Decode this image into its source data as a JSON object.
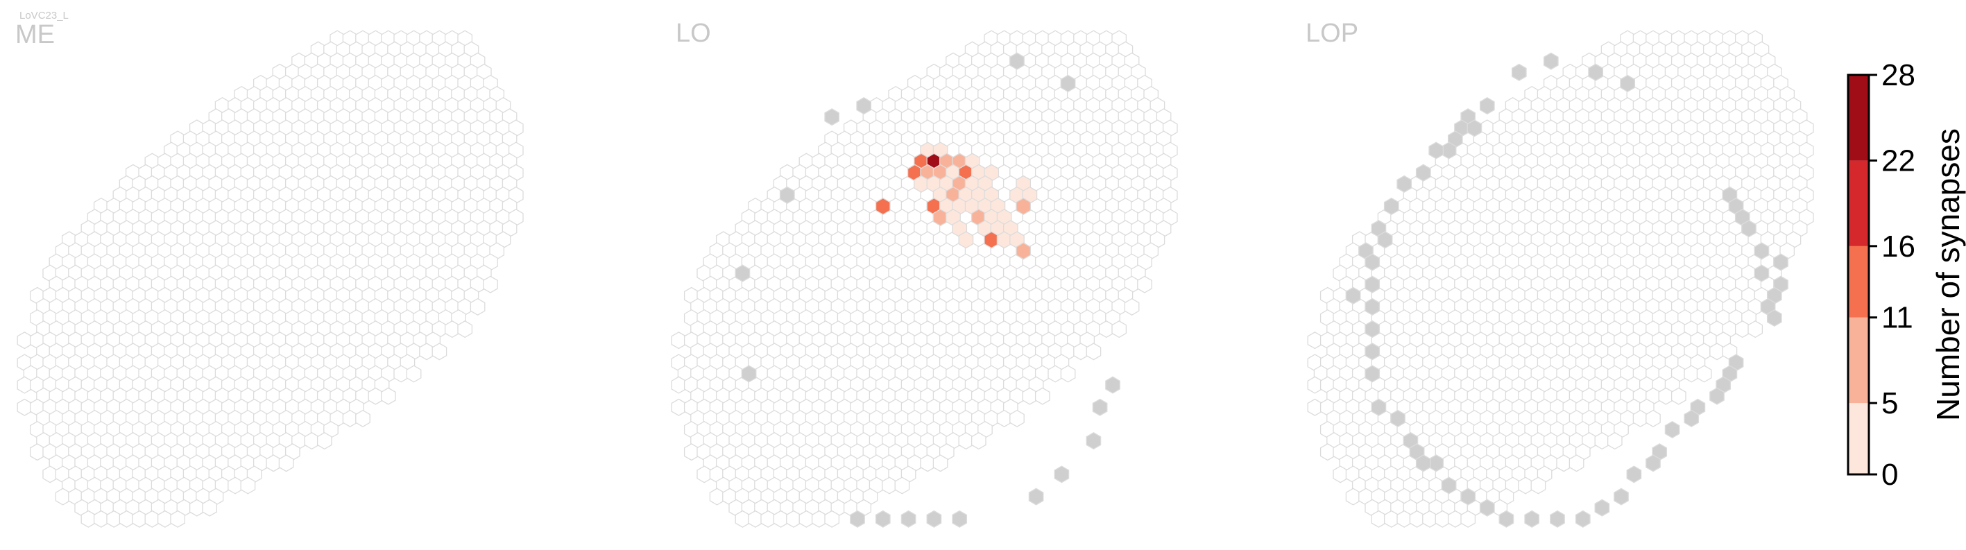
{
  "figure_title": "LoVC23_L",
  "chart_data": {
    "type": "heatmap",
    "colorbar": {
      "label": "Number of synapses",
      "ticks": [
        0,
        5,
        11,
        16,
        22,
        28
      ],
      "bins": [
        {
          "from": 0,
          "to": 5,
          "color": "#fde7dd"
        },
        {
          "from": 5,
          "to": 11,
          "color": "#f9b29a"
        },
        {
          "from": 11,
          "to": 16,
          "color": "#f4704f"
        },
        {
          "from": 16,
          "to": 22,
          "color": "#d5282c"
        },
        {
          "from": 22,
          "to": 28,
          "color": "#a10d16"
        }
      ]
    },
    "colors": {
      "cell_outline": "#dcdcdc",
      "boundary_cell": "#cfcfcf",
      "axis": "#000000"
    },
    "panels": [
      {
        "name": "ME",
        "active_cells": [],
        "boundary_cells": []
      },
      {
        "name": "LO",
        "active_cells": [
          {
            "q": 0,
            "r": 10,
            "v": 2
          },
          {
            "q": 1,
            "r": 10,
            "v": 1
          },
          {
            "q": 0,
            "r": 11,
            "v": 14
          },
          {
            "q": 1,
            "r": 11,
            "v": 28
          },
          {
            "q": 2,
            "r": 11,
            "v": 10
          },
          {
            "q": 3,
            "r": 11,
            "v": 8
          },
          {
            "q": 4,
            "r": 11,
            "v": 3
          },
          {
            "q": -1,
            "r": 12,
            "v": 12
          },
          {
            "q": 0,
            "r": 12,
            "v": 8
          },
          {
            "q": 1,
            "r": 12,
            "v": 9
          },
          {
            "q": 2,
            "r": 12,
            "v": 4
          },
          {
            "q": 3,
            "r": 12,
            "v": 12
          },
          {
            "q": 4,
            "r": 12,
            "v": 2
          },
          {
            "q": 5,
            "r": 12,
            "v": 1
          },
          {
            "q": 0,
            "r": 13,
            "v": 4
          },
          {
            "q": 1,
            "r": 13,
            "v": 3
          },
          {
            "q": 2,
            "r": 13,
            "v": 2
          },
          {
            "q": 3,
            "r": 13,
            "v": 9
          },
          {
            "q": 4,
            "r": 13,
            "v": 3
          },
          {
            "q": 5,
            "r": 13,
            "v": 2
          },
          {
            "q": 8,
            "r": 13,
            "v": 2
          },
          {
            "q": 1,
            "r": 14,
            "v": 2
          },
          {
            "q": 2,
            "r": 14,
            "v": 8
          },
          {
            "q": 3,
            "r": 14,
            "v": 1
          },
          {
            "q": 4,
            "r": 14,
            "v": 2
          },
          {
            "q": 5,
            "r": 14,
            "v": 3
          },
          {
            "q": 7,
            "r": 14,
            "v": 2
          },
          {
            "q": 8,
            "r": 14,
            "v": 3
          },
          {
            "q": -3,
            "r": 15,
            "v": 12
          },
          {
            "q": 1,
            "r": 15,
            "v": 16
          },
          {
            "q": 2,
            "r": 15,
            "v": 2
          },
          {
            "q": 3,
            "r": 15,
            "v": 3
          },
          {
            "q": 4,
            "r": 15,
            "v": 2
          },
          {
            "q": 5,
            "r": 15,
            "v": 1
          },
          {
            "q": 6,
            "r": 15,
            "v": 2
          },
          {
            "q": 8,
            "r": 15,
            "v": 10
          },
          {
            "q": 1,
            "r": 16,
            "v": 8
          },
          {
            "q": 2,
            "r": 16,
            "v": 2
          },
          {
            "q": 4,
            "r": 16,
            "v": 8
          },
          {
            "q": 5,
            "r": 16,
            "v": 2
          },
          {
            "q": 6,
            "r": 16,
            "v": 3
          },
          {
            "q": 3,
            "r": 17,
            "v": 1
          },
          {
            "q": 5,
            "r": 17,
            "v": 2
          },
          {
            "q": 6,
            "r": 17,
            "v": 3
          },
          {
            "q": 7,
            "r": 17,
            "v": 2
          },
          {
            "q": 3,
            "r": 18,
            "v": 3
          },
          {
            "q": 5,
            "r": 18,
            "v": 13
          },
          {
            "q": 6,
            "r": 18,
            "v": 2
          },
          {
            "q": 7,
            "r": 18,
            "v": 2
          },
          {
            "q": 8,
            "r": 19,
            "v": 10
          }
        ],
        "boundary_cells": [
          {
            "q": 7,
            "r": 2
          },
          {
            "q": 11,
            "r": 4
          },
          {
            "q": -5,
            "r": 6
          },
          {
            "q": -7,
            "r": 7
          },
          {
            "q": -11,
            "r": 14
          },
          {
            "q": -14,
            "r": 21
          },
          {
            "q": -14,
            "r": 30
          },
          {
            "q": 15,
            "r": 31
          },
          {
            "q": 14,
            "r": 33
          },
          {
            "q": 13,
            "r": 36
          },
          {
            "q": 11,
            "r": 39
          },
          {
            "q": 9,
            "r": 41
          },
          {
            "q": -5,
            "r": 43
          },
          {
            "q": -3,
            "r": 43
          },
          {
            "q": -1,
            "r": 43
          },
          {
            "q": 1,
            "r": 43
          },
          {
            "q": 3,
            "r": 43
          }
        ]
      },
      {
        "name": "LOP",
        "active_cells": [],
        "boundary_cells": [
          {
            "q": -3,
            "r": 3
          },
          {
            "q": -1,
            "r": 2
          },
          {
            "q": 3,
            "r": 3
          },
          {
            "q": 5,
            "r": 4
          },
          {
            "q": -6,
            "r": 6
          },
          {
            "q": -7,
            "r": 7
          },
          {
            "q": -8,
            "r": 8
          },
          {
            "q": -7,
            "r": 8
          },
          {
            "q": -8,
            "r": 9
          },
          {
            "q": -9,
            "r": 10
          },
          {
            "q": -10,
            "r": 10
          },
          {
            "q": -11,
            "r": 12
          },
          {
            "q": -12,
            "r": 13
          },
          {
            "q": -13,
            "r": 15
          },
          {
            "q": -14,
            "r": 17
          },
          {
            "q": -14,
            "r": 18
          },
          {
            "q": -15,
            "r": 19
          },
          {
            "q": -15,
            "r": 20
          },
          {
            "q": -15,
            "r": 22
          },
          {
            "q": -16,
            "r": 23
          },
          {
            "q": -15,
            "r": 24
          },
          {
            "q": -15,
            "r": 26
          },
          {
            "q": -15,
            "r": 28
          },
          {
            "q": -15,
            "r": 30
          },
          {
            "q": -14,
            "r": 33
          },
          {
            "q": -13,
            "r": 34
          },
          {
            "q": -12,
            "r": 36
          },
          {
            "q": -11,
            "r": 37
          },
          {
            "q": -10,
            "r": 38
          },
          {
            "q": -11,
            "r": 38
          },
          {
            "q": -9,
            "r": 40
          },
          {
            "q": -7,
            "r": 41
          },
          {
            "q": -6,
            "r": 42
          },
          {
            "q": -4,
            "r": 43
          },
          {
            "q": -2,
            "r": 43
          },
          {
            "q": 0,
            "r": 43
          },
          {
            "q": 2,
            "r": 43
          },
          {
            "q": 3,
            "r": 42
          },
          {
            "q": 5,
            "r": 41
          },
          {
            "q": 13,
            "r": 14
          },
          {
            "q": 14,
            "r": 15
          },
          {
            "q": 14,
            "r": 16
          },
          {
            "q": 15,
            "r": 17
          },
          {
            "q": 16,
            "r": 19
          },
          {
            "q": 17,
            "r": 20
          },
          {
            "q": 16,
            "r": 21
          },
          {
            "q": 17,
            "r": 22
          },
          {
            "q": 17,
            "r": 23
          },
          {
            "q": 16,
            "r": 24
          },
          {
            "q": 17,
            "r": 25
          },
          {
            "q": 14,
            "r": 29
          },
          {
            "q": 13,
            "r": 30
          },
          {
            "q": 13,
            "r": 31
          },
          {
            "q": 12,
            "r": 32
          },
          {
            "q": 11,
            "r": 33
          },
          {
            "q": 10,
            "r": 34
          },
          {
            "q": 9,
            "r": 35
          },
          {
            "q": 8,
            "r": 37
          },
          {
            "q": 7,
            "r": 38
          },
          {
            "q": 6,
            "r": 39
          }
        ]
      }
    ]
  }
}
